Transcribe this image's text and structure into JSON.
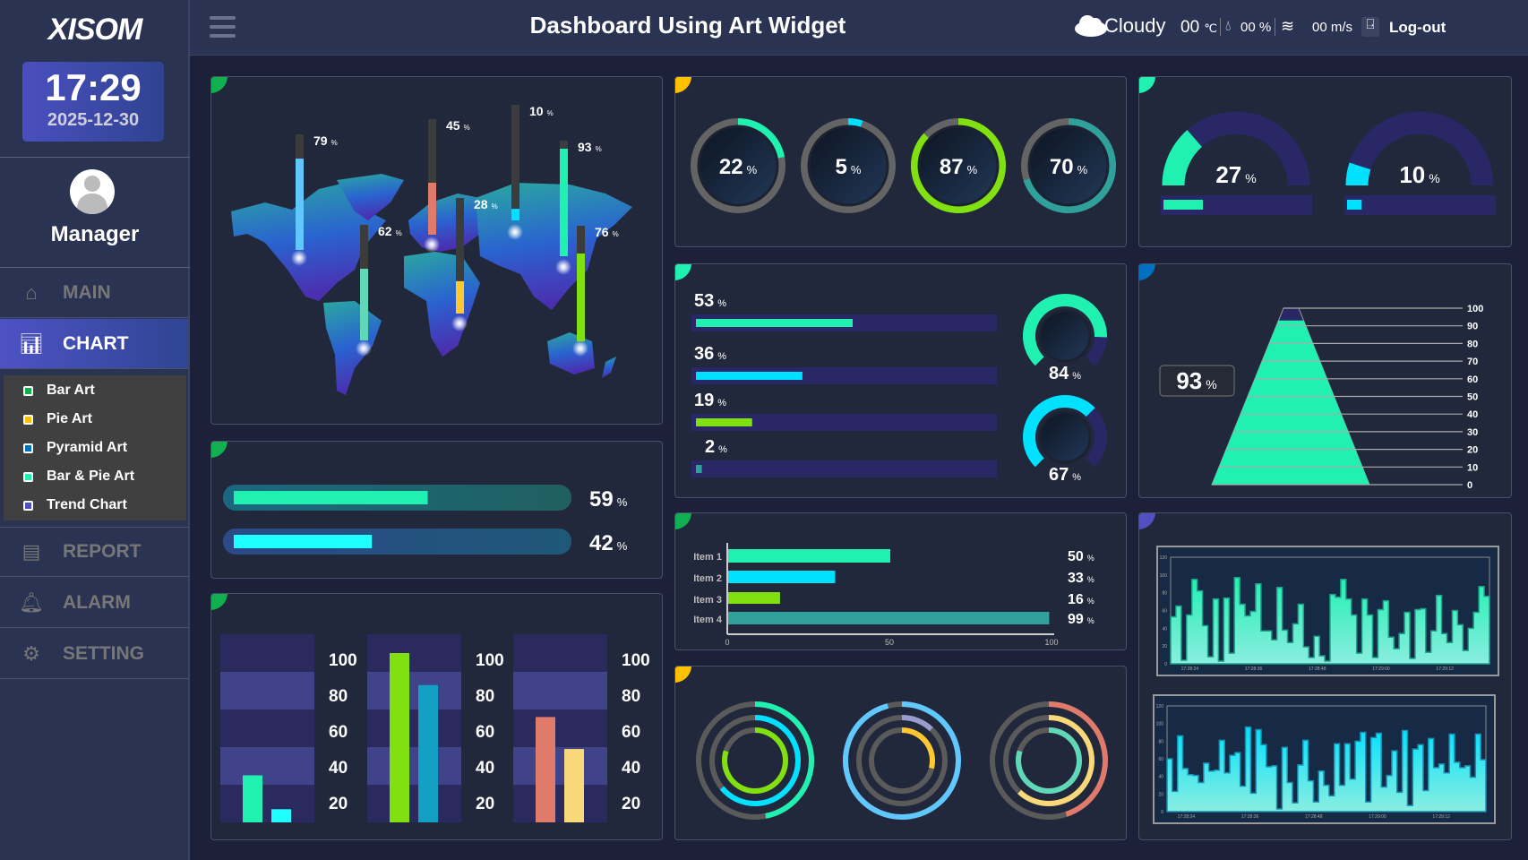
{
  "header": {
    "menu_icon": "hamburger-icon",
    "title": "Dashboard Using Art Widget",
    "weather": {
      "icon": "cloud-icon",
      "condition": "Cloudy",
      "temperature": "00",
      "temp_unit": "℃",
      "humidity_icon": "drop-icon",
      "humidity": "00 %",
      "wind_icon": "wind-icon",
      "wind": "00 m/s"
    },
    "logout_icon": "logout-icon",
    "logout": "Log-out"
  },
  "sidebar": {
    "logo": "XISOM",
    "time": "17:29",
    "date": "2025-12-30",
    "user": "Manager",
    "nav": [
      {
        "label": "MAIN",
        "icon": "home-icon"
      },
      {
        "label": "CHART",
        "icon": "chart-icon",
        "active": true
      },
      {
        "label": "REPORT",
        "icon": "report-icon"
      },
      {
        "label": "ALARM",
        "icon": "bell-icon"
      },
      {
        "label": "SETTING",
        "icon": "gear-icon"
      }
    ],
    "submenu": [
      {
        "label": "Bar Art",
        "color": "#10b050"
      },
      {
        "label": "Pie Art",
        "color": "#ffc000"
      },
      {
        "label": "Pyramid Art",
        "color": "#0070c0"
      },
      {
        "label": "Bar & Pie Art",
        "color": "#20f0b0"
      },
      {
        "label": "Trend Chart",
        "color": "#5050c0"
      }
    ]
  },
  "unit": "%",
  "panel_accents": {
    "map": "#10b050",
    "progress": "#10b050",
    "bars": "#10b050",
    "circle_gauges": "#ffc000",
    "bar_list": "#20f0b0",
    "hbar": "#10b050",
    "rings": "#ffc000",
    "semi_gauges": "#20f0b0",
    "pyramid": "#0070c0",
    "trends": "#5050c0"
  },
  "map_pins": [
    {
      "value": 79,
      "color": "#60c8ff"
    },
    {
      "value": 62,
      "color": "#60d8b8"
    },
    {
      "value": 45,
      "color": "#e07a6a"
    },
    {
      "value": 28,
      "color": "#ffc830"
    },
    {
      "value": 10,
      "color": "#00e0ff"
    },
    {
      "value": 93,
      "color": "#20f0b0"
    },
    {
      "value": 76,
      "color": "#80e010"
    }
  ],
  "progress": [
    {
      "value": 59,
      "color": "#20f0b0"
    },
    {
      "value": 42,
      "color": "#20ffff"
    }
  ],
  "bar_groups": {
    "ticks": [
      "100",
      "80",
      "60",
      "40",
      "20"
    ],
    "groups": [
      [
        {
          "value": 25,
          "color": "#20f0b0"
        },
        {
          "value": 7,
          "color": "#20ffff"
        }
      ],
      [
        {
          "value": 90,
          "color": "#80e010"
        },
        {
          "value": 73,
          "color": "#14a0c4"
        }
      ],
      [
        {
          "value": 56,
          "color": "#e07a6a"
        },
        {
          "value": 39,
          "color": "#f8d878"
        }
      ]
    ]
  },
  "circle_gauges": [
    {
      "value": 22,
      "color": "#20f0b0"
    },
    {
      "value": 5,
      "color": "#00e0ff"
    },
    {
      "value": 87,
      "color": "#80e010"
    },
    {
      "value": 70,
      "color": "#2fa09a"
    }
  ],
  "bar_list": [
    {
      "value": 53,
      "color": "#20f0b0"
    },
    {
      "value": 36,
      "color": "#00e0ff"
    },
    {
      "value": 19,
      "color": "#80e010"
    },
    {
      "value": 2,
      "color": "#2fa09a"
    }
  ],
  "donut_gauges": [
    {
      "value": 84,
      "color": "#20f0b0"
    },
    {
      "value": 67,
      "color": "#00e0ff"
    }
  ],
  "hbar": {
    "items": [
      {
        "label": "Item 1",
        "value": 50,
        "color": "#20f0b0"
      },
      {
        "label": "Item 2",
        "value": 33,
        "color": "#00e0ff"
      },
      {
        "label": "Item 3",
        "value": 16,
        "color": "#80e010"
      },
      {
        "label": "Item 4",
        "value": 99,
        "color": "#2fa09a"
      }
    ],
    "ticks": [
      0,
      50,
      100
    ]
  },
  "rings": [
    [
      {
        "value": 47,
        "color": "#20f0b0"
      },
      {
        "value": 64,
        "color": "#00e0ff"
      },
      {
        "value": 80,
        "color": "#80e010"
      }
    ],
    [
      {
        "value": 96,
        "color": "#60c8ff"
      },
      {
        "value": 12,
        "color": "#9c9ccc"
      },
      {
        "value": 29,
        "color": "#ffc830"
      }
    ],
    [
      {
        "value": 45,
        "color": "#e07a6a"
      },
      {
        "value": 62,
        "color": "#f8d878"
      },
      {
        "value": 80,
        "color": "#60d8b8"
      }
    ]
  ],
  "semi_gauges": [
    {
      "value": 27,
      "color": "#20f0b0"
    },
    {
      "value": 10,
      "color": "#00e0ff"
    }
  ],
  "pyramid": {
    "value": 93,
    "color": "#20f0b0",
    "ticks": [
      100,
      90,
      80,
      70,
      60,
      50,
      40,
      30,
      20,
      10,
      0
    ]
  },
  "trends": [
    {
      "color": "#20f0b0",
      "yticks": [
        0,
        20,
        40,
        60,
        80,
        100,
        120
      ],
      "xticks": [
        "17:28:24",
        "17:28:36",
        "17:28:48",
        "17:29:00",
        "17:29:12"
      ],
      "values": [
        53,
        65,
        4,
        55,
        95,
        82,
        43,
        8,
        73,
        3,
        74,
        12,
        97,
        67,
        54,
        59,
        90,
        37,
        37,
        27,
        86,
        38,
        24,
        45,
        67,
        19,
        7,
        31,
        9,
        3,
        78,
        75,
        95,
        73,
        55,
        12,
        73,
        55,
        7,
        61,
        71,
        30,
        17,
        34,
        58,
        6,
        61,
        62,
        13,
        37,
        77,
        34,
        24,
        60,
        44,
        15,
        40,
        58,
        87,
        76
      ]
    },
    {
      "color": "#00e0ff",
      "yticks": [
        0,
        20,
        40,
        60,
        80,
        100,
        120
      ],
      "xticks": [
        "17:28:24",
        "17:28:36",
        "17:28:48",
        "17:29:00",
        "17:29:12"
      ],
      "values": [
        60,
        23,
        86,
        49,
        42,
        41,
        33,
        55,
        46,
        47,
        81,
        44,
        64,
        67,
        29,
        96,
        21,
        93,
        76,
        51,
        52,
        3,
        73,
        33,
        10,
        53,
        81,
        35,
        11,
        46,
        30,
        18,
        77,
        30,
        77,
        37,
        80,
        90,
        11,
        84,
        89,
        28,
        41,
        69,
        22,
        92,
        7,
        71,
        76,
        24,
        83,
        50,
        54,
        44,
        88,
        56,
        50,
        52,
        39,
        88,
        59
      ]
    }
  ]
}
